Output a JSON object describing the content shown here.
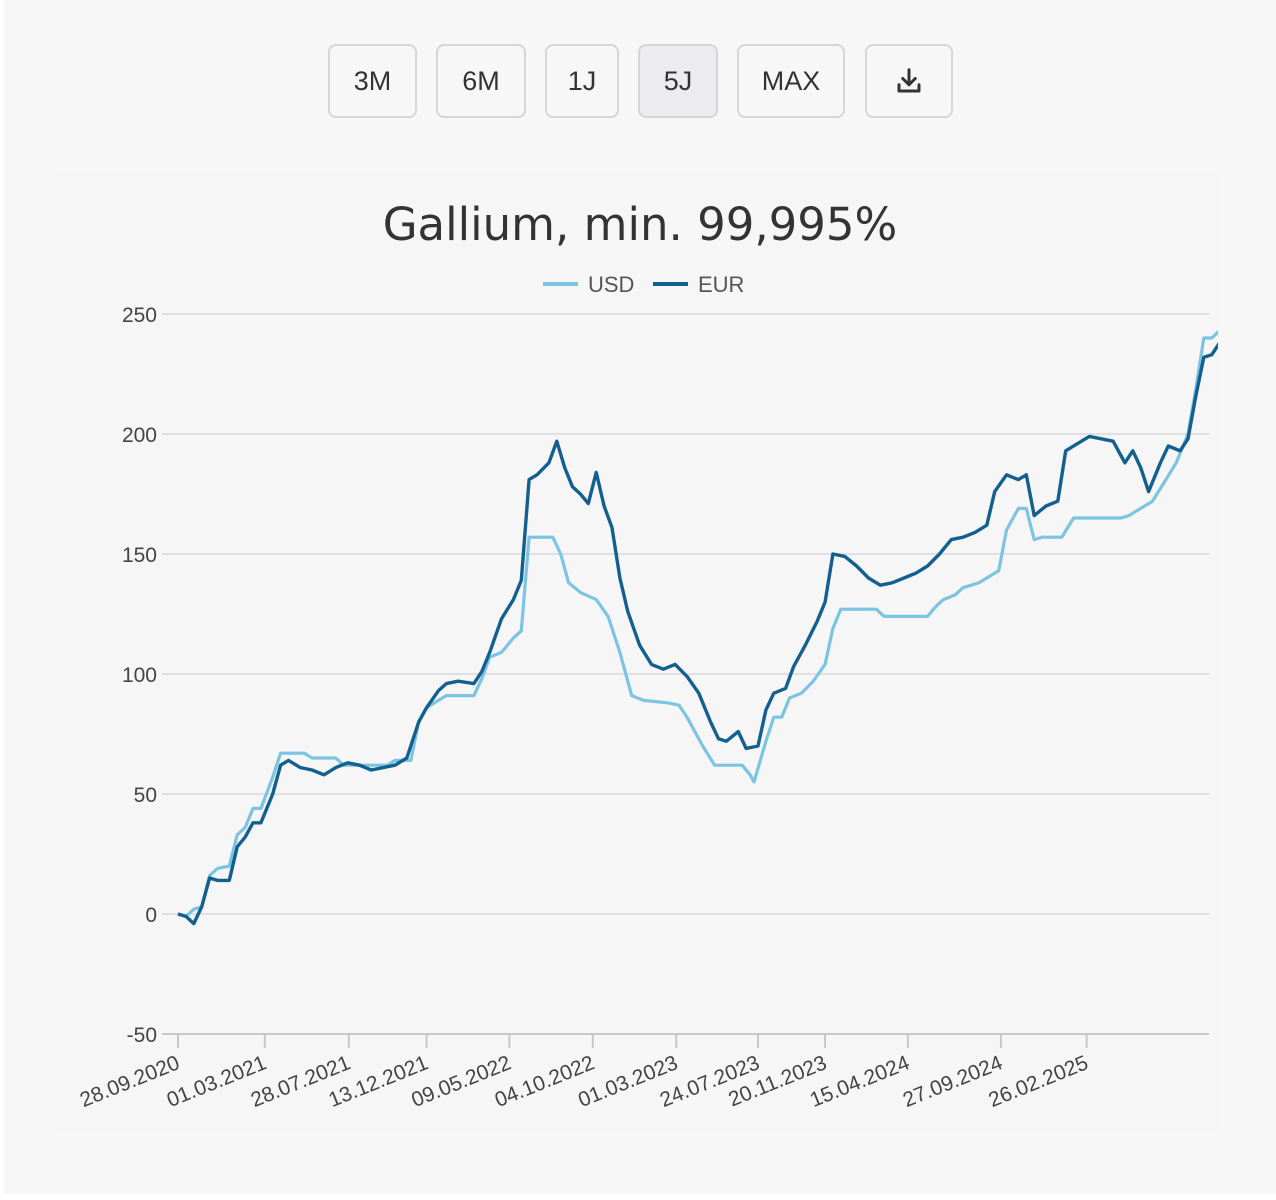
{
  "toolbar": {
    "buttons": [
      {
        "label": "3M",
        "active": false
      },
      {
        "label": "6M",
        "active": false
      },
      {
        "label": "1J",
        "active": false
      },
      {
        "label": "5J",
        "active": true
      },
      {
        "label": "MAX",
        "active": false
      }
    ],
    "download_icon": "download-icon"
  },
  "colors": {
    "usd": "#7cc4e2",
    "eur": "#13608f",
    "grid": "#d9d9db",
    "background": "#f7f7f8"
  },
  "chart_data": {
    "type": "line",
    "title": "Gallium, min. 99,995%",
    "xlabel": "",
    "ylabel": "",
    "ylim": [
      -50,
      250
    ],
    "yticks": [
      "-50",
      "0",
      "50",
      "100",
      "150",
      "200",
      "250"
    ],
    "xticks": [
      "28.09.2020",
      "01.03.2021",
      "28.07.2021",
      "13.12.2021",
      "09.05.2022",
      "04.10.2022",
      "01.03.2023",
      "24.07.2023",
      "20.11.2023",
      "15.04.2024",
      "27.09.2024",
      "26.02.2025"
    ],
    "legend": "top-center",
    "grid": true,
    "series": [
      {
        "name": "USD",
        "points": [
          [
            "2020-09-28",
            0
          ],
          [
            "2020-10-12",
            -1
          ],
          [
            "2020-10-26",
            2
          ],
          [
            "2020-11-09",
            3
          ],
          [
            "2020-11-23",
            16
          ],
          [
            "2020-12-07",
            19
          ],
          [
            "2020-12-28",
            20
          ],
          [
            "2021-01-11",
            33
          ],
          [
            "2021-01-25",
            36
          ],
          [
            "2021-02-08",
            44
          ],
          [
            "2021-02-22",
            44
          ],
          [
            "2021-03-15",
            57
          ],
          [
            "2021-03-29",
            67
          ],
          [
            "2021-05-10",
            67
          ],
          [
            "2021-05-24",
            65
          ],
          [
            "2021-07-05",
            65
          ],
          [
            "2021-07-19",
            62
          ],
          [
            "2021-10-04",
            62
          ],
          [
            "2021-10-18",
            64
          ],
          [
            "2021-11-15",
            64
          ],
          [
            "2021-11-29",
            80
          ],
          [
            "2021-12-13",
            86
          ],
          [
            "2022-01-03",
            89
          ],
          [
            "2022-01-17",
            91
          ],
          [
            "2022-03-07",
            91
          ],
          [
            "2022-03-21",
            98
          ],
          [
            "2022-04-04",
            107
          ],
          [
            "2022-04-25",
            109
          ],
          [
            "2022-05-16",
            115
          ],
          [
            "2022-05-30",
            118
          ],
          [
            "2022-06-13",
            157
          ],
          [
            "2022-07-25",
            157
          ],
          [
            "2022-08-08",
            150
          ],
          [
            "2022-08-22",
            138
          ],
          [
            "2022-09-12",
            134
          ],
          [
            "2022-10-10",
            131
          ],
          [
            "2022-10-31",
            124
          ],
          [
            "2022-11-21",
            109
          ],
          [
            "2022-12-12",
            91
          ],
          [
            "2023-01-02",
            89
          ],
          [
            "2023-02-13",
            88
          ],
          [
            "2023-03-06",
            87
          ],
          [
            "2023-03-20",
            82
          ],
          [
            "2023-04-17",
            70
          ],
          [
            "2023-05-08",
            62
          ],
          [
            "2023-06-26",
            62
          ],
          [
            "2023-07-10",
            58
          ],
          [
            "2023-07-17",
            55
          ],
          [
            "2023-08-07",
            72
          ],
          [
            "2023-08-21",
            82
          ],
          [
            "2023-09-04",
            82
          ],
          [
            "2023-09-18",
            90
          ],
          [
            "2023-10-09",
            92
          ],
          [
            "2023-10-30",
            97
          ],
          [
            "2023-11-20",
            104
          ],
          [
            "2023-12-04",
            119
          ],
          [
            "2023-12-18",
            127
          ],
          [
            "2024-02-19",
            127
          ],
          [
            "2024-03-04",
            124
          ],
          [
            "2024-05-20",
            124
          ],
          [
            "2024-06-03",
            128
          ],
          [
            "2024-06-17",
            131
          ],
          [
            "2024-07-08",
            133
          ],
          [
            "2024-07-22",
            136
          ],
          [
            "2024-08-19",
            138
          ],
          [
            "2024-09-23",
            143
          ],
          [
            "2024-10-07",
            160
          ],
          [
            "2024-10-28",
            169
          ],
          [
            "2024-11-11",
            169
          ],
          [
            "2024-11-25",
            156
          ],
          [
            "2024-12-09",
            157
          ],
          [
            "2025-01-13",
            157
          ],
          [
            "2025-02-03",
            165
          ],
          [
            "2025-04-28",
            165
          ],
          [
            "2025-05-12",
            166
          ],
          [
            "2025-06-02",
            169
          ],
          [
            "2025-06-23",
            172
          ],
          [
            "2025-07-14",
            180
          ],
          [
            "2025-08-04",
            188
          ],
          [
            "2025-08-25",
            200
          ],
          [
            "2025-09-08",
            219
          ],
          [
            "2025-09-22",
            240
          ],
          [
            "2025-10-06",
            240
          ],
          [
            "2025-10-20",
            243
          ]
        ]
      },
      {
        "name": "EUR",
        "points": [
          [
            "2020-09-28",
            0
          ],
          [
            "2020-10-12",
            -1
          ],
          [
            "2020-10-26",
            -4
          ],
          [
            "2020-11-09",
            3
          ],
          [
            "2020-11-23",
            15
          ],
          [
            "2020-12-07",
            14
          ],
          [
            "2020-12-28",
            14
          ],
          [
            "2021-01-11",
            28
          ],
          [
            "2021-01-25",
            32
          ],
          [
            "2021-02-08",
            38
          ],
          [
            "2021-02-22",
            38
          ],
          [
            "2021-03-15",
            50
          ],
          [
            "2021-03-29",
            62
          ],
          [
            "2021-04-12",
            64
          ],
          [
            "2021-05-03",
            61
          ],
          [
            "2021-05-24",
            60
          ],
          [
            "2021-06-14",
            58
          ],
          [
            "2021-07-05",
            61
          ],
          [
            "2021-07-26",
            63
          ],
          [
            "2021-08-16",
            62
          ],
          [
            "2021-09-06",
            60
          ],
          [
            "2021-09-27",
            61
          ],
          [
            "2021-10-18",
            62
          ],
          [
            "2021-11-08",
            65
          ],
          [
            "2021-11-29",
            80
          ],
          [
            "2021-12-13",
            86
          ],
          [
            "2022-01-03",
            93
          ],
          [
            "2022-01-17",
            96
          ],
          [
            "2022-02-07",
            97
          ],
          [
            "2022-03-07",
            96
          ],
          [
            "2022-03-21",
            101
          ],
          [
            "2022-04-04",
            109
          ],
          [
            "2022-04-25",
            123
          ],
          [
            "2022-05-16",
            131
          ],
          [
            "2022-05-30",
            139
          ],
          [
            "2022-06-13",
            181
          ],
          [
            "2022-06-27",
            183
          ],
          [
            "2022-07-18",
            188
          ],
          [
            "2022-08-01",
            197
          ],
          [
            "2022-08-15",
            186
          ],
          [
            "2022-08-29",
            178
          ],
          [
            "2022-09-12",
            175
          ],
          [
            "2022-09-26",
            171
          ],
          [
            "2022-10-10",
            184
          ],
          [
            "2022-10-24",
            170
          ],
          [
            "2022-11-07",
            161
          ],
          [
            "2022-11-21",
            140
          ],
          [
            "2022-12-05",
            126
          ],
          [
            "2022-12-26",
            112
          ],
          [
            "2023-01-16",
            104
          ],
          [
            "2023-02-06",
            102
          ],
          [
            "2023-02-27",
            104
          ],
          [
            "2023-03-20",
            99
          ],
          [
            "2023-04-10",
            92
          ],
          [
            "2023-05-01",
            80
          ],
          [
            "2023-05-15",
            73
          ],
          [
            "2023-05-29",
            72
          ],
          [
            "2023-06-19",
            76
          ],
          [
            "2023-07-03",
            69
          ],
          [
            "2023-07-24",
            70
          ],
          [
            "2023-08-07",
            85
          ],
          [
            "2023-08-21",
            92
          ],
          [
            "2023-09-11",
            94
          ],
          [
            "2023-09-25",
            103
          ],
          [
            "2023-10-16",
            112
          ],
          [
            "2023-11-06",
            122
          ],
          [
            "2023-11-20",
            130
          ],
          [
            "2023-12-04",
            150
          ],
          [
            "2023-12-25",
            149
          ],
          [
            "2024-01-15",
            145
          ],
          [
            "2024-02-05",
            140
          ],
          [
            "2024-02-26",
            137
          ],
          [
            "2024-03-18",
            138
          ],
          [
            "2024-04-08",
            140
          ],
          [
            "2024-04-29",
            142
          ],
          [
            "2024-05-20",
            145
          ],
          [
            "2024-06-10",
            150
          ],
          [
            "2024-07-01",
            156
          ],
          [
            "2024-07-22",
            157
          ],
          [
            "2024-08-12",
            159
          ],
          [
            "2024-09-02",
            162
          ],
          [
            "2024-09-16",
            176
          ],
          [
            "2024-10-07",
            183
          ],
          [
            "2024-10-28",
            181
          ],
          [
            "2024-11-11",
            183
          ],
          [
            "2024-11-25",
            166
          ],
          [
            "2024-12-16",
            170
          ],
          [
            "2025-01-06",
            172
          ],
          [
            "2025-01-20",
            193
          ],
          [
            "2025-02-10",
            196
          ],
          [
            "2025-03-03",
            199
          ],
          [
            "2025-03-24",
            198
          ],
          [
            "2025-04-14",
            197
          ],
          [
            "2025-05-05",
            188
          ],
          [
            "2025-05-19",
            193
          ],
          [
            "2025-06-02",
            186
          ],
          [
            "2025-06-16",
            176
          ],
          [
            "2025-07-07",
            188
          ],
          [
            "2025-07-21",
            195
          ],
          [
            "2025-08-11",
            193
          ],
          [
            "2025-08-25",
            198
          ],
          [
            "2025-09-08",
            216
          ],
          [
            "2025-09-22",
            232
          ],
          [
            "2025-10-06",
            233
          ],
          [
            "2025-10-20",
            238
          ]
        ]
      }
    ]
  }
}
